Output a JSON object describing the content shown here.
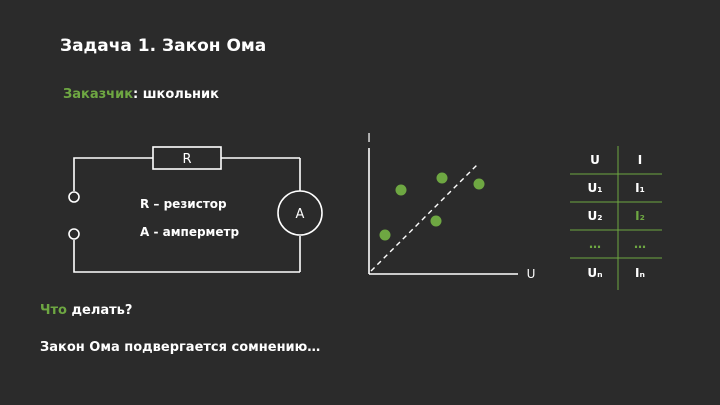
{
  "slide": {
    "title": "Задача 1. Закон Ома",
    "customer_label": "Заказчик",
    "customer_rest": ": школьник",
    "question_green": "Что",
    "question_rest": " делать?",
    "statement": "Закон Ома подвергается сомнению…"
  },
  "circuit": {
    "resistor_label": "R",
    "ammeter_label": "A",
    "legend_resistor": "R – резистор",
    "legend_ammeter": "A - амперметр"
  },
  "plot": {
    "y_axis_label": "I",
    "x_axis_label": "U"
  },
  "table": {
    "header": [
      "U",
      "I"
    ],
    "rows": [
      [
        "U₁",
        "I₁"
      ],
      [
        "U₂",
        "I₂"
      ],
      [
        "…",
        "…"
      ],
      [
        "Uₙ",
        "Iₙ"
      ]
    ]
  },
  "colors": {
    "accent": "#6ea742",
    "background": "#2b2b2b",
    "text": "#ffffff"
  }
}
